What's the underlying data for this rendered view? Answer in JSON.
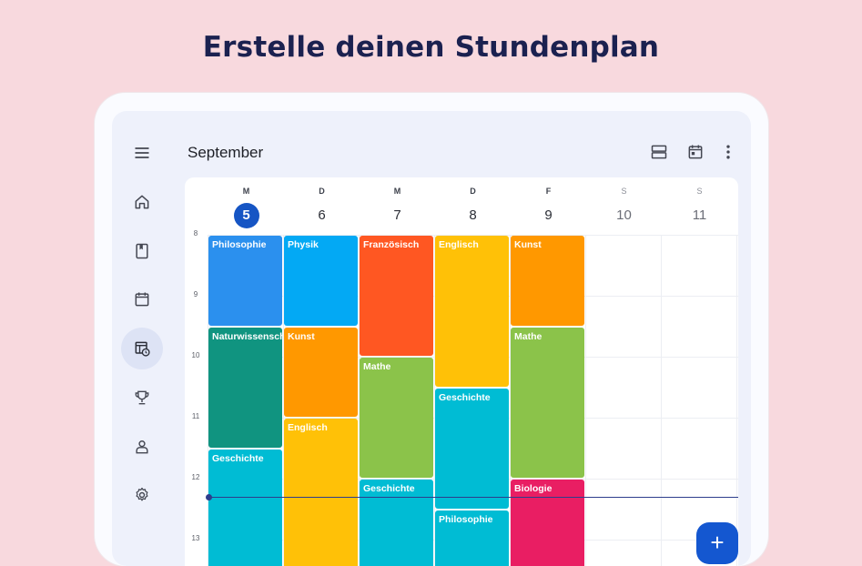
{
  "headline": "Erstelle deinen Stundenplan",
  "app": {
    "month": "September",
    "rail_icons": [
      "menu-icon",
      "home-icon",
      "book-icon",
      "calendar-icon",
      "timetable-icon",
      "trophy-icon",
      "teacher-icon",
      "settings-icon"
    ],
    "top_icons": [
      "view-agenda-icon",
      "today-icon",
      "more-vert-icon"
    ],
    "fab_label": "+"
  },
  "days": [
    {
      "letter": "M",
      "num": "5"
    },
    {
      "letter": "D",
      "num": "6"
    },
    {
      "letter": "M",
      "num": "7"
    },
    {
      "letter": "D",
      "num": "8"
    },
    {
      "letter": "F",
      "num": "9"
    },
    {
      "letter": "S",
      "num": "10"
    },
    {
      "letter": "S",
      "num": "11"
    }
  ],
  "hours": [
    "8",
    "9",
    "10",
    "11",
    "12",
    "13"
  ],
  "events": [
    {
      "day": 0,
      "start": 8.0,
      "end": 9.5,
      "subject": "Philosophie",
      "color": "#2b90ee"
    },
    {
      "day": 0,
      "start": 9.5,
      "end": 11.5,
      "subject": "Naturwissenschaften",
      "color": "#109480"
    },
    {
      "day": 0,
      "start": 11.5,
      "end": 13.5,
      "subject": "Geschichte",
      "color": "#00bcd4"
    },
    {
      "day": 1,
      "start": 8.0,
      "end": 9.5,
      "subject": "Physik",
      "color": "#03a9f4"
    },
    {
      "day": 1,
      "start": 9.5,
      "end": 11.0,
      "subject": "Kunst",
      "color": "#ff9800"
    },
    {
      "day": 1,
      "start": 11.0,
      "end": 13.5,
      "subject": "Englisch",
      "color": "#ffc107"
    },
    {
      "day": 2,
      "start": 8.0,
      "end": 10.0,
      "subject": "Französisch",
      "color": "#ff5722"
    },
    {
      "day": 2,
      "start": 10.0,
      "end": 12.0,
      "subject": "Mathe",
      "color": "#8bc34a"
    },
    {
      "day": 2,
      "start": 12.0,
      "end": 13.5,
      "subject": "Geschichte",
      "color": "#00bcd4"
    },
    {
      "day": 3,
      "start": 8.0,
      "end": 10.5,
      "subject": "Englisch",
      "color": "#ffc107"
    },
    {
      "day": 3,
      "start": 10.5,
      "end": 12.5,
      "subject": "Geschichte",
      "color": "#00bcd4"
    },
    {
      "day": 3,
      "start": 12.5,
      "end": 13.5,
      "subject": "Philosophie",
      "color": "#00bcd4"
    },
    {
      "day": 4,
      "start": 8.0,
      "end": 9.5,
      "subject": "Kunst",
      "color": "#ff9800"
    },
    {
      "day": 4,
      "start": 9.5,
      "end": 12.0,
      "subject": "Mathe",
      "color": "#8bc34a"
    },
    {
      "day": 4,
      "start": 12.0,
      "end": 13.5,
      "subject": "Biologie",
      "color": "#e91e63"
    }
  ]
}
